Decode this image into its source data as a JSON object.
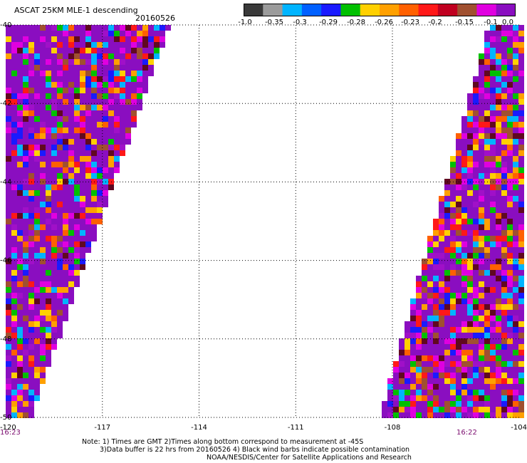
{
  "header": {
    "title": "ASCAT 25KM MLE-1 descending",
    "date": "20160526"
  },
  "colorbar": {
    "colors": [
      "#3a3a3a",
      "#9b9b9b",
      "#00b4ff",
      "#0060ff",
      "#1a1aff",
      "#00c000",
      "#ffd000",
      "#ffa000",
      "#ff6000",
      "#ff1818",
      "#c00020",
      "#a05030",
      "#e000e0",
      "#8a0ec0"
    ],
    "tick_labels": [
      "-1.0",
      "-0.35",
      "-0.3",
      "-0.29",
      "-0.28",
      "-0.26",
      "-0.23",
      "-0.2",
      "-0.15",
      "-0.1",
      "0.0"
    ]
  },
  "chart_data": {
    "type": "heatmap",
    "title": "ASCAT 25KM MLE-1 descending",
    "x_ticks": [
      "-120",
      "-117",
      "-114",
      "-111",
      "-108",
      "-104"
    ],
    "y_ticks": [
      "-40",
      "-42",
      "-44",
      "-46",
      "-48",
      "-50"
    ],
    "xlim": [
      -120,
      -104
    ],
    "ylim": [
      -50,
      -40
    ],
    "grid": true,
    "swaths": [
      {
        "side": "west",
        "time": "16:23",
        "lon_range_top": [
          -120,
          -115.0
        ],
        "lon_range_bottom": [
          -120,
          -119.3
        ]
      },
      {
        "side": "east",
        "time": "16:22",
        "lon_range_top": [
          -104.9,
          -104
        ],
        "lon_range_bottom": [
          -108.3,
          -104
        ]
      }
    ]
  },
  "axes": {
    "x_ticks": [
      "-120",
      "-117",
      "-114",
      "-111",
      "-108",
      "-104"
    ],
    "y_ticks": [
      "-40",
      "-42",
      "-44",
      "-46",
      "-48",
      "-50"
    ],
    "time_left": "16:23",
    "time_right": "16:22"
  },
  "notes": {
    "line1": "Note: 1) Times are GMT 2)Times along bottom correspond to measurement at -45S",
    "line2": "3)Data buffer is 22 hrs from 20160526 4) Black wind barbs indicate possible contamination",
    "line3": "NOAA/NESDIS/Center for Satellite Applications and Research"
  }
}
